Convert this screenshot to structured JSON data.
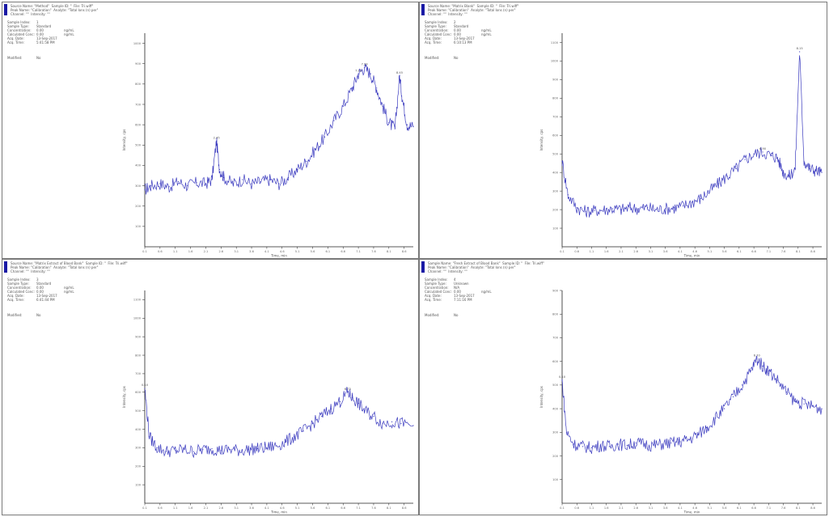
{
  "colors": {
    "trace": "#3b3bbf",
    "axis": "#222222",
    "frame": "#7a7a7a",
    "header_bar": "#1a1aa6"
  },
  "chart_data": [
    {
      "type": "line",
      "header": [
        "Source Name: \"Method\"  Sample ID: \"  File: Tri.wiff\"",
        "Peak Name: \"Calibration\"  Analyte: \"Total Ions (n) per\"",
        "Channel: \"\"  Intensity: \"\""
      ],
      "meta": [
        {
          "k": "Sample Index:",
          "v": "1",
          "u": ""
        },
        {
          "k": "Sample Type:",
          "v": "Standard",
          "u": ""
        },
        {
          "k": "Concentration:",
          "v": "0.00",
          "u": "ng/mL"
        },
        {
          "k": "Calculated Conc:",
          "v": "0.00",
          "u": "ng/mL"
        },
        {
          "k": "Acq. Date:",
          "v": "13-Sep-2017",
          "u": ""
        },
        {
          "k": "Acq. Time:",
          "v": "5:41:58 PM",
          "u": ""
        }
      ],
      "modified_label": "Modified:",
      "modified_value": "No",
      "ylabel": "Intensity, cps",
      "xlabel": "Time, min",
      "xlim": [
        0.1,
        8.9
      ],
      "ylim": [
        0,
        1050
      ],
      "yticks": [
        "100",
        "200",
        "300",
        "400",
        "500",
        "600",
        "700",
        "800",
        "900",
        "1000"
      ],
      "xticks": [
        "0.1",
        "0.6",
        "1.1",
        "1.6",
        "2.1",
        "2.6",
        "3.1",
        "3.6",
        "4.1",
        "4.6",
        "5.1",
        "5.6",
        "6.1",
        "6.6",
        "7.1",
        "7.6",
        "8.1",
        "8.6"
      ],
      "points": [
        [
          0.1,
          280
        ],
        [
          0.3,
          300
        ],
        [
          0.6,
          310
        ],
        [
          0.9,
          295
        ],
        [
          1.2,
          320
        ],
        [
          1.5,
          300
        ],
        [
          1.8,
          315
        ],
        [
          2.1,
          310
        ],
        [
          2.3,
          330
        ],
        [
          2.45,
          520
        ],
        [
          2.55,
          380
        ],
        [
          2.7,
          340
        ],
        [
          3.0,
          310
        ],
        [
          3.3,
          330
        ],
        [
          3.6,
          310
        ],
        [
          3.9,
          320
        ],
        [
          4.2,
          330
        ],
        [
          4.5,
          310
        ],
        [
          4.8,
          340
        ],
        [
          5.1,
          380
        ],
        [
          5.4,
          420
        ],
        [
          5.7,
          480
        ],
        [
          6.0,
          540
        ],
        [
          6.3,
          620
        ],
        [
          6.6,
          690
        ],
        [
          6.9,
          780
        ],
        [
          7.1,
          850
        ],
        [
          7.3,
          880
        ],
        [
          7.5,
          850
        ],
        [
          7.7,
          780
        ],
        [
          7.9,
          690
        ],
        [
          8.1,
          610
        ],
        [
          8.3,
          580
        ],
        [
          8.45,
          840
        ],
        [
          8.55,
          720
        ],
        [
          8.7,
          600
        ],
        [
          8.9,
          590
        ]
      ],
      "peaks": [
        {
          "x": 2.45,
          "label": "2.45"
        },
        {
          "x": 7.1,
          "label": "7.13"
        },
        {
          "x": 7.3,
          "label": "7.34"
        },
        {
          "x": 8.45,
          "label": "8.45"
        }
      ]
    },
    {
      "type": "line",
      "header": [
        "Source Name: \"Matrix Blank\"  Sample ID: \"  File: Tri.wiff\"",
        "Peak Name: \"Calibration\"  Analyte: \"Total Ions (n) per\"",
        "Channel: \"\"  Intensity: \"\""
      ],
      "meta": [
        {
          "k": "Sample Index:",
          "v": "2",
          "u": ""
        },
        {
          "k": "Sample Type:",
          "v": "Standard",
          "u": ""
        },
        {
          "k": "Concentration:",
          "v": "0.00",
          "u": "ng/mL"
        },
        {
          "k": "Calculated Conc:",
          "v": "0.00",
          "u": "ng/mL"
        },
        {
          "k": "Acq. Date:",
          "v": "13-Sep-2017",
          "u": ""
        },
        {
          "k": "Acq. Time:",
          "v": "6:10:13 PM",
          "u": ""
        }
      ],
      "modified_label": "Modified:",
      "modified_value": "No",
      "ylabel": "Intensity, cps",
      "xlabel": "Time, min",
      "xlim": [
        0.1,
        8.9
      ],
      "ylim": [
        0,
        1150
      ],
      "yticks": [
        "100",
        "200",
        "300",
        "400",
        "500",
        "600",
        "700",
        "800",
        "900",
        "1000",
        "1100"
      ],
      "xticks": [
        "0.1",
        "0.6",
        "1.1",
        "1.6",
        "2.1",
        "2.6",
        "3.1",
        "3.6",
        "4.1",
        "4.6",
        "5.1",
        "5.6",
        "6.1",
        "6.6",
        "7.1",
        "7.6",
        "8.1",
        "8.6"
      ],
      "points": [
        [
          0.1,
          460
        ],
        [
          0.3,
          280
        ],
        [
          0.6,
          210
        ],
        [
          0.9,
          190
        ],
        [
          1.2,
          195
        ],
        [
          1.5,
          200
        ],
        [
          1.8,
          205
        ],
        [
          2.1,
          200
        ],
        [
          2.4,
          210
        ],
        [
          2.7,
          205
        ],
        [
          3.0,
          210
        ],
        [
          3.3,
          200
        ],
        [
          3.6,
          205
        ],
        [
          3.9,
          210
        ],
        [
          4.2,
          220
        ],
        [
          4.5,
          240
        ],
        [
          4.8,
          260
        ],
        [
          5.1,
          300
        ],
        [
          5.4,
          340
        ],
        [
          5.7,
          380
        ],
        [
          6.0,
          420
        ],
        [
          6.3,
          470
        ],
        [
          6.6,
          500
        ],
        [
          6.9,
          510
        ],
        [
          7.2,
          490
        ],
        [
          7.4,
          480
        ],
        [
          7.6,
          400
        ],
        [
          7.8,
          380
        ],
        [
          8.0,
          420
        ],
        [
          8.15,
          1050
        ],
        [
          8.3,
          460
        ],
        [
          8.5,
          420
        ],
        [
          8.7,
          410
        ],
        [
          8.9,
          400
        ]
      ],
      "peaks": [
        {
          "x": 8.15,
          "label": "8.15"
        },
        {
          "x": 6.9,
          "label": "6.90"
        }
      ]
    },
    {
      "type": "line",
      "header": [
        "Source Name: \"Matrix Extract of Blood Bank\"  Sample ID: \"  File: Tri.wiff\"",
        "Peak Name: \"Calibration\"  Analyte: \"Total Ions (n) per\"",
        "Channel: \"\"  Intensity: \"\""
      ],
      "meta": [
        {
          "k": "Sample Index:",
          "v": "3",
          "u": ""
        },
        {
          "k": "Sample Type:",
          "v": "Standard",
          "u": ""
        },
        {
          "k": "Concentration:",
          "v": "0.00",
          "u": "ng/mL"
        },
        {
          "k": "Calculated Conc:",
          "v": "0.00",
          "u": "ng/mL"
        },
        {
          "k": "Acq. Date:",
          "v": "13-Sep-2017",
          "u": ""
        },
        {
          "k": "Acq. Time:",
          "v": "6:41:44 PM",
          "u": ""
        }
      ],
      "modified_label": "Modified:",
      "modified_value": "No",
      "ylabel": "Intensity, cps",
      "xlabel": "Time, min",
      "xlim": [
        0.1,
        8.9
      ],
      "ylim": [
        0,
        1150
      ],
      "yticks": [
        "100",
        "200",
        "300",
        "400",
        "500",
        "600",
        "700",
        "800",
        "900",
        "1000",
        "1100"
      ],
      "xticks": [
        "0.1",
        "0.6",
        "1.1",
        "1.6",
        "2.1",
        "2.6",
        "3.1",
        "3.6",
        "4.1",
        "4.6",
        "5.1",
        "5.6",
        "6.1",
        "6.6",
        "7.1",
        "7.6",
        "8.1",
        "8.6"
      ],
      "points": [
        [
          0.1,
          620
        ],
        [
          0.25,
          360
        ],
        [
          0.5,
          300
        ],
        [
          0.8,
          280
        ],
        [
          1.1,
          285
        ],
        [
          1.4,
          290
        ],
        [
          1.7,
          280
        ],
        [
          2.0,
          290
        ],
        [
          2.3,
          295
        ],
        [
          2.6,
          285
        ],
        [
          2.9,
          290
        ],
        [
          3.2,
          285
        ],
        [
          3.5,
          290
        ],
        [
          3.8,
          295
        ],
        [
          4.1,
          300
        ],
        [
          4.4,
          310
        ],
        [
          4.7,
          330
        ],
        [
          5.0,
          360
        ],
        [
          5.3,
          390
        ],
        [
          5.6,
          430
        ],
        [
          5.9,
          470
        ],
        [
          6.2,
          510
        ],
        [
          6.5,
          550
        ],
        [
          6.75,
          600
        ],
        [
          6.9,
          570
        ],
        [
          7.1,
          540
        ],
        [
          7.3,
          500
        ],
        [
          7.6,
          470
        ],
        [
          7.9,
          430
        ],
        [
          8.2,
          440
        ],
        [
          8.5,
          430
        ],
        [
          8.9,
          420
        ]
      ],
      "peaks": [
        {
          "x": 0.1,
          "label": "0.10"
        },
        {
          "x": 6.75,
          "label": "6.75"
        }
      ]
    },
    {
      "type": "line",
      "header": [
        "Sample Name: \"Fresh Extract of Blood Bank\"  Sample ID: \"  File: Tri.wiff\"",
        "Peak Name: \"Calibration\"  Analyte: \"Total Ions (n) per\"",
        "Channel: \"\"  Intensity: \"\""
      ],
      "meta": [
        {
          "k": "Sample Index:",
          "v": "4",
          "u": ""
        },
        {
          "k": "Sample Type:",
          "v": "Unknown",
          "u": ""
        },
        {
          "k": "Concentration:",
          "v": "N/A",
          "u": ""
        },
        {
          "k": "Calculated Conc:",
          "v": "0.00",
          "u": "ng/mL"
        },
        {
          "k": "Acq. Date:",
          "v": "13-Sep-2017",
          "u": ""
        },
        {
          "k": "Acq. Time:",
          "v": "7:11:16 PM",
          "u": ""
        }
      ],
      "modified_label": "Modified:",
      "modified_value": "No",
      "ylabel": "Intensity, cps",
      "xlabel": "Time, min",
      "xlim": [
        0.1,
        8.9
      ],
      "ylim": [
        0,
        900
      ],
      "yticks": [
        "100",
        "200",
        "300",
        "400",
        "500",
        "600",
        "700",
        "800",
        "900"
      ],
      "xticks": [
        "0.1",
        "0.6",
        "1.1",
        "1.6",
        "2.1",
        "2.6",
        "3.1",
        "3.6",
        "4.1",
        "4.6",
        "5.1",
        "5.6",
        "6.1",
        "6.6",
        "7.1",
        "7.6",
        "8.1",
        "8.6"
      ],
      "points": [
        [
          0.1,
          520
        ],
        [
          0.25,
          300
        ],
        [
          0.5,
          250
        ],
        [
          0.8,
          240
        ],
        [
          1.1,
          235
        ],
        [
          1.4,
          245
        ],
        [
          1.7,
          240
        ],
        [
          2.0,
          250
        ],
        [
          2.3,
          245
        ],
        [
          2.6,
          255
        ],
        [
          2.9,
          250
        ],
        [
          3.2,
          245
        ],
        [
          3.5,
          250
        ],
        [
          3.8,
          255
        ],
        [
          4.1,
          260
        ],
        [
          4.4,
          270
        ],
        [
          4.7,
          290
        ],
        [
          5.0,
          320
        ],
        [
          5.3,
          360
        ],
        [
          5.6,
          400
        ],
        [
          5.9,
          450
        ],
        [
          6.2,
          500
        ],
        [
          6.5,
          560
        ],
        [
          6.7,
          610
        ],
        [
          6.9,
          580
        ],
        [
          7.1,
          560
        ],
        [
          7.4,
          520
        ],
        [
          7.7,
          470
        ],
        [
          8.0,
          430
        ],
        [
          8.3,
          420
        ],
        [
          8.6,
          410
        ],
        [
          8.9,
          400
        ]
      ],
      "peaks": [
        {
          "x": 6.7,
          "label": "6.70"
        },
        {
          "x": 0.1,
          "label": "0.10"
        }
      ]
    }
  ]
}
